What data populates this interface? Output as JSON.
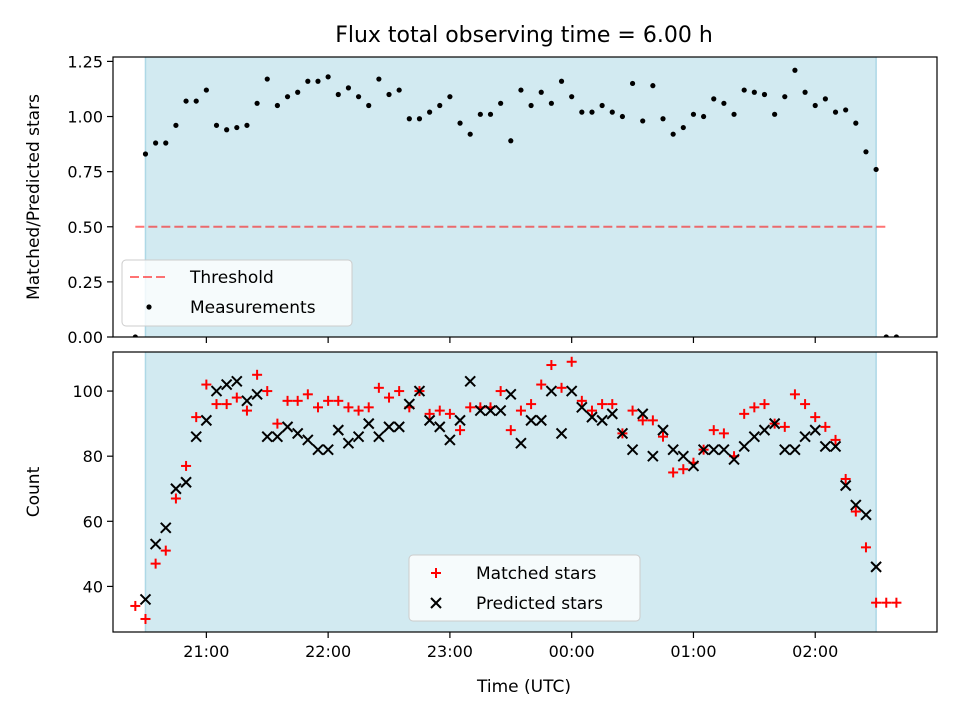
{
  "figure": {
    "title": "Flux total observing time = 6.00 h",
    "xlabel": "Time (UTC)"
  },
  "colors": {
    "band": "#add8e6",
    "threshold": "#ff0000",
    "matched": "#ff0000",
    "predicted": "#000000",
    "measurement": "#000000"
  },
  "chart_data": [
    {
      "type": "scatter",
      "ylabel": "Matched/Predicted stars",
      "xlim": [
        "20:14",
        "03:00"
      ],
      "ylim": [
        0,
        1.27
      ],
      "x_ticks": [
        "21:00",
        "22:00",
        "23:00",
        "00:00",
        "01:00",
        "02:00"
      ],
      "y_ticks": [
        "0.00",
        "0.25",
        "0.50",
        "0.75",
        "1.00",
        "1.25"
      ],
      "shaded_interval": [
        "20:30",
        "02:30"
      ],
      "legend_position": "lower-left",
      "threshold": {
        "name": "Threshold",
        "y": 0.5,
        "x_range": [
          "20:25",
          "02:35"
        ]
      },
      "series": [
        {
          "name": "Measurements",
          "x": [
            "20:25",
            "20:30",
            "20:35",
            "20:40",
            "20:45",
            "20:50",
            "20:55",
            "21:00",
            "21:05",
            "21:10",
            "21:15",
            "21:20",
            "21:25",
            "21:30",
            "21:35",
            "21:40",
            "21:45",
            "21:50",
            "21:55",
            "22:00",
            "22:05",
            "22:10",
            "22:15",
            "22:20",
            "22:25",
            "22:30",
            "22:35",
            "22:40",
            "22:45",
            "22:50",
            "22:55",
            "23:00",
            "23:05",
            "23:10",
            "23:15",
            "23:20",
            "23:25",
            "23:30",
            "23:35",
            "23:40",
            "23:45",
            "23:50",
            "23:55",
            "00:00",
            "00:05",
            "00:10",
            "00:15",
            "00:20",
            "00:25",
            "00:30",
            "00:35",
            "00:40",
            "00:45",
            "00:50",
            "00:55",
            "01:00",
            "01:05",
            "01:10",
            "01:15",
            "01:20",
            "01:25",
            "01:30",
            "01:35",
            "01:40",
            "01:45",
            "01:50",
            "01:55",
            "02:00",
            "02:05",
            "02:10",
            "02:15",
            "02:20",
            "02:25",
            "02:30",
            "02:35",
            "02:40"
          ],
          "y": [
            0.0,
            0.83,
            0.88,
            0.88,
            0.96,
            1.07,
            1.07,
            1.12,
            0.96,
            0.94,
            0.95,
            0.96,
            1.06,
            1.17,
            1.05,
            1.09,
            1.11,
            1.16,
            1.16,
            1.18,
            1.1,
            1.13,
            1.09,
            1.05,
            1.17,
            1.1,
            1.12,
            0.99,
            0.99,
            1.02,
            1.05,
            1.09,
            0.97,
            0.92,
            1.01,
            1.01,
            1.06,
            0.89,
            1.12,
            1.05,
            1.11,
            1.06,
            1.16,
            1.09,
            1.02,
            1.02,
            1.05,
            1.02,
            1.0,
            1.15,
            0.98,
            1.14,
            0.99,
            0.92,
            0.95,
            1.01,
            1.0,
            1.08,
            1.06,
            1.01,
            1.12,
            1.11,
            1.1,
            1.01,
            1.09,
            1.21,
            1.11,
            1.05,
            1.08,
            1.02,
            1.03,
            0.97,
            0.84,
            0.76,
            0.0,
            0.0
          ]
        }
      ]
    },
    {
      "type": "scatter",
      "ylabel": "Count",
      "xlim": [
        "20:14",
        "03:00"
      ],
      "ylim": [
        26,
        112
      ],
      "x_ticks": [
        "21:00",
        "22:00",
        "23:00",
        "00:00",
        "01:00",
        "02:00"
      ],
      "y_ticks": [
        "40",
        "60",
        "80",
        "100"
      ],
      "shaded_interval": [
        "20:30",
        "02:30"
      ],
      "legend_position": "lower-center",
      "series": [
        {
          "name": "Matched stars",
          "marker": "+",
          "x": [
            "20:25",
            "20:30",
            "20:35",
            "20:40",
            "20:45",
            "20:50",
            "20:55",
            "21:00",
            "21:05",
            "21:10",
            "21:15",
            "21:20",
            "21:25",
            "21:30",
            "21:35",
            "21:40",
            "21:45",
            "21:50",
            "21:55",
            "22:00",
            "22:05",
            "22:10",
            "22:15",
            "22:20",
            "22:25",
            "22:30",
            "22:35",
            "22:40",
            "22:45",
            "22:50",
            "22:55",
            "23:00",
            "23:05",
            "23:10",
            "23:15",
            "23:20",
            "23:25",
            "23:30",
            "23:35",
            "23:40",
            "23:45",
            "23:50",
            "23:55",
            "00:00",
            "00:05",
            "00:10",
            "00:15",
            "00:20",
            "00:25",
            "00:30",
            "00:35",
            "00:40",
            "00:45",
            "00:50",
            "00:55",
            "01:00",
            "01:05",
            "01:10",
            "01:15",
            "01:20",
            "01:25",
            "01:30",
            "01:35",
            "01:40",
            "01:45",
            "01:50",
            "01:55",
            "02:00",
            "02:05",
            "02:10",
            "02:15",
            "02:20",
            "02:25",
            "02:30",
            "02:35",
            "02:40"
          ],
          "y": [
            34,
            30,
            47,
            51,
            67,
            77,
            92,
            102,
            96,
            96,
            98,
            94,
            105,
            100,
            90,
            97,
            97,
            99,
            95,
            97,
            97,
            95,
            94,
            95,
            101,
            98,
            100,
            95,
            100,
            93,
            94,
            93,
            88,
            95,
            95,
            95,
            100,
            88,
            94,
            96,
            102,
            108,
            101,
            109,
            97,
            94,
            96,
            96,
            87,
            94,
            91,
            91,
            86,
            75,
            76,
            78,
            82,
            88,
            87,
            80,
            93,
            95,
            96,
            90,
            89,
            99,
            96,
            92,
            89,
            85,
            73,
            63,
            52,
            35,
            35,
            35
          ]
        },
        {
          "name": "Predicted stars",
          "marker": "x",
          "x": [
            "20:30",
            "20:35",
            "20:40",
            "20:45",
            "20:50",
            "20:55",
            "21:00",
            "21:05",
            "21:10",
            "21:15",
            "21:20",
            "21:25",
            "21:30",
            "21:35",
            "21:40",
            "21:45",
            "21:50",
            "21:55",
            "22:00",
            "22:05",
            "22:10",
            "22:15",
            "22:20",
            "22:25",
            "22:30",
            "22:35",
            "22:40",
            "22:45",
            "22:50",
            "22:55",
            "23:00",
            "23:05",
            "23:10",
            "23:15",
            "23:20",
            "23:25",
            "23:30",
            "23:35",
            "23:40",
            "23:45",
            "23:50",
            "23:55",
            "00:00",
            "00:05",
            "00:10",
            "00:15",
            "00:20",
            "00:25",
            "00:30",
            "00:35",
            "00:40",
            "00:45",
            "00:50",
            "00:55",
            "01:00",
            "01:05",
            "01:10",
            "01:15",
            "01:20",
            "01:25",
            "01:30",
            "01:35",
            "01:40",
            "01:45",
            "01:50",
            "01:55",
            "02:00",
            "02:05",
            "02:10",
            "02:15",
            "02:20",
            "02:25",
            "02:30"
          ],
          "y": [
            36,
            53,
            58,
            70,
            72,
            86,
            91,
            100,
            102,
            103,
            97,
            99,
            86,
            86,
            89,
            87,
            85,
            82,
            82,
            88,
            84,
            86,
            90,
            86,
            89,
            89,
            96,
            100,
            91,
            89,
            85,
            91,
            103,
            94,
            94,
            94,
            99,
            84,
            91,
            91,
            100,
            87,
            100,
            95,
            92,
            91,
            93,
            87,
            82,
            93,
            80,
            88,
            82,
            80,
            77,
            82,
            82,
            82,
            79,
            83,
            86,
            88,
            90,
            82,
            82,
            86,
            88,
            83,
            83,
            71,
            65,
            62,
            46
          ]
        }
      ]
    }
  ]
}
